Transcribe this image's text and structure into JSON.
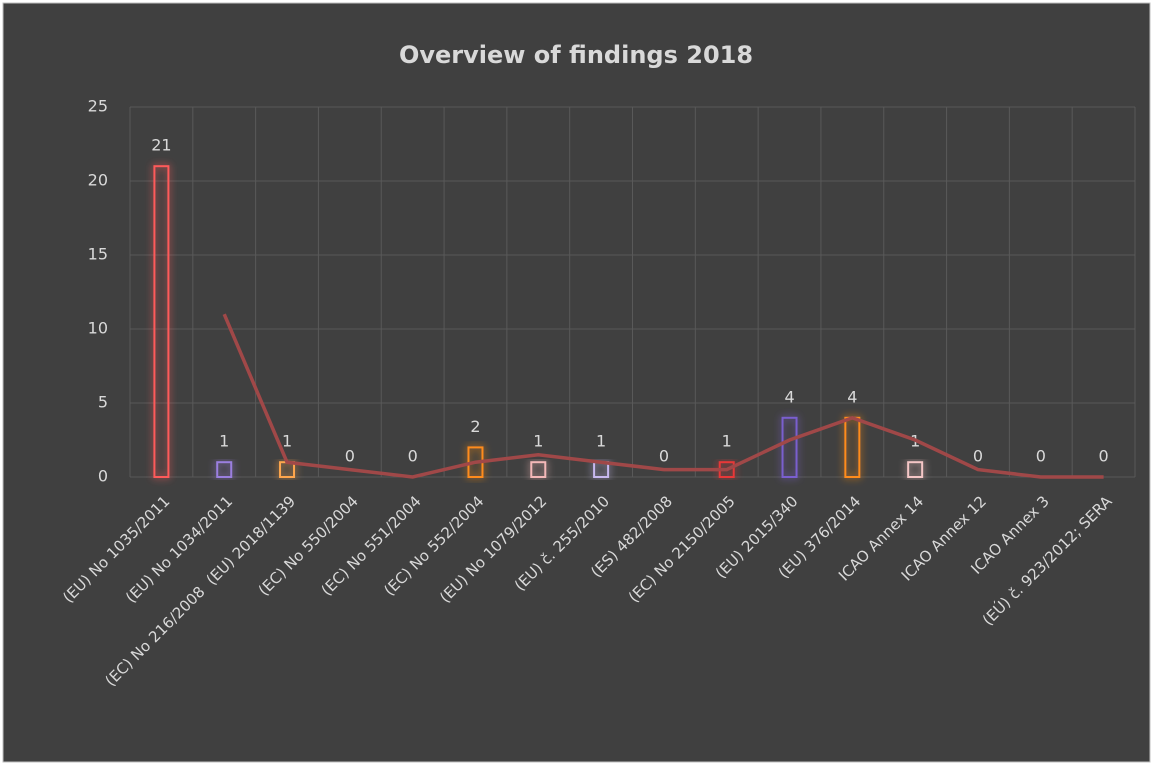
{
  "chart_data": {
    "type": "bar",
    "title": "Overview of findings 2018",
    "categories": [
      "(EU) No 1035/2011",
      "(EU) No 1034/2011",
      "(EC) No 216/2008  (EU) 2018/1139",
      "(EC) No 550/2004",
      "(EC) No 551/2004",
      "(EC) No 552/2004",
      "(EU) No 1079/2012",
      "(EU) č. 255/2010",
      "(ES) 482/2008",
      "(EC) No 2150/2005",
      "(EU) 2015/340",
      "(EU) 376/2014",
      "ICAO Annex 14",
      "ICAO Annex 12",
      "ICAO Annex 3",
      "(EÚ) č. 923/2012; SERA"
    ],
    "series": [
      {
        "values": [
          21,
          1,
          1,
          0,
          0,
          2,
          1,
          1,
          0,
          1,
          4,
          4,
          1,
          0,
          0,
          0
        ],
        "colors": [
          "#ff5a5a",
          "#9b7fe0",
          "#ffa64d",
          "#aaaaaa",
          "#aaaaaa",
          "#ff8c1a",
          "#f4b8b8",
          "#c8b8f0",
          "#aaaaaa",
          "#e83838",
          "#7a5fcf",
          "#ff8c1a",
          "#f5c6c6",
          "#aaaaaa",
          "#aaaaaa",
          "#aaaaaa"
        ]
      },
      {
        "type": "line",
        "color": "#a04848",
        "values": [
          null,
          11,
          1,
          0.5,
          0,
          1,
          1.5,
          1,
          0.5,
          0.5,
          2.5,
          4,
          2.5,
          0.5,
          0,
          0
        ]
      }
    ],
    "ylim": [
      0,
      25
    ],
    "yticks": [
      0,
      5,
      10,
      15,
      20,
      25
    ],
    "grid": true,
    "data_labels": true
  }
}
